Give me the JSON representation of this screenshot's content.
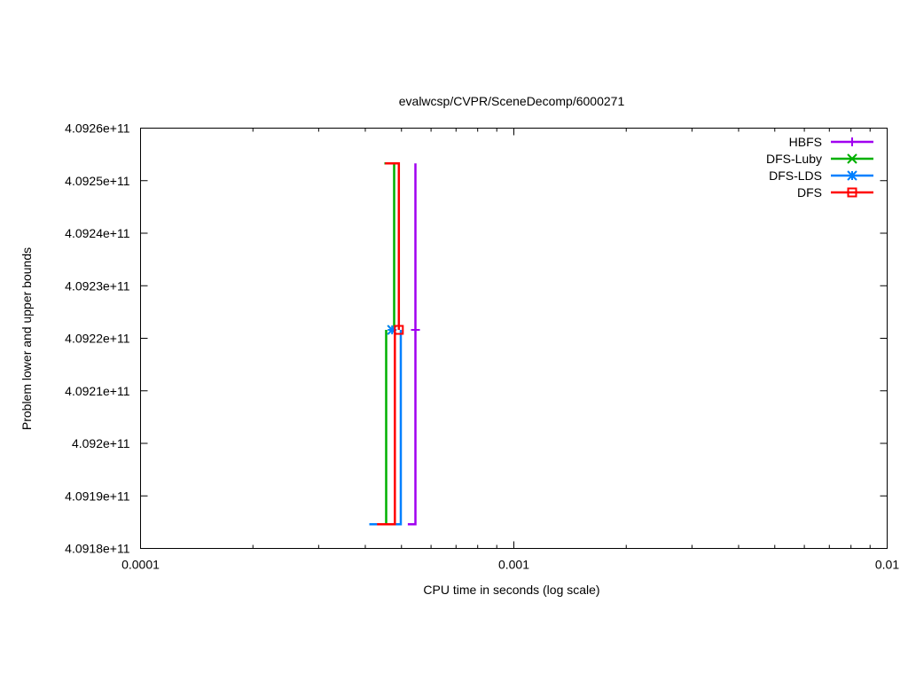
{
  "chart_data": {
    "type": "line",
    "title": "evalwcsp/CVPR/SceneDecomp/6000271",
    "xlabel": "CPU time in seconds (log scale)",
    "ylabel": "Problem lower and upper bounds",
    "x_scale": "log",
    "xlim": [
      0.0001,
      0.01
    ],
    "ylim": [
      409180000000,
      409260000000
    ],
    "x_ticks": [
      {
        "value": 0.0001,
        "label": "0.0001"
      },
      {
        "value": 0.001,
        "label": "0.001"
      },
      {
        "value": 0.01,
        "label": "0.01"
      }
    ],
    "y_ticks": [
      {
        "value": 409180000000,
        "label": "4.0918e+11"
      },
      {
        "value": 409190000000,
        "label": "4.0919e+11"
      },
      {
        "value": 409200000000,
        "label": "4.092e+11"
      },
      {
        "value": 409210000000,
        "label": "4.0921e+11"
      },
      {
        "value": 409220000000,
        "label": "4.0922e+11"
      },
      {
        "value": 409230000000,
        "label": "4.0923e+11"
      },
      {
        "value": 409240000000,
        "label": "4.0924e+11"
      },
      {
        "value": 409250000000,
        "label": "4.0925e+11"
      },
      {
        "value": 409260000000,
        "label": "4.0926e+11"
      }
    ],
    "grid": false,
    "legend_position": "top-right",
    "series": [
      {
        "name": "HBFS",
        "color": "#a000f0",
        "marker": "plus",
        "lower": [
          [
            0.00052,
            409184600000
          ],
          [
            0.000545,
            409184600000
          ],
          [
            0.000545,
            409221600000
          ]
        ],
        "upper": [
          [
            0.000545,
            409253300000
          ],
          [
            0.000545,
            409221600000
          ]
        ],
        "point": [
          0.000545,
          409221600000
        ]
      },
      {
        "name": "DFS-Luby",
        "color": "#00b000",
        "marker": "x",
        "lower": [
          [
            0.00041,
            409184600000
          ],
          [
            0.000455,
            409184600000
          ],
          [
            0.000455,
            409221600000
          ]
        ],
        "upper": [
          [
            0.00045,
            409253300000
          ],
          [
            0.000478,
            409253300000
          ],
          [
            0.000478,
            409221600000
          ]
        ],
        "point": [
          0.000472,
          409221600000
        ]
      },
      {
        "name": "DFS-LDS",
        "color": "#0080ff",
        "marker": "star",
        "lower": [
          [
            0.00041,
            409184600000
          ],
          [
            0.000498,
            409184600000
          ],
          [
            0.000498,
            409221600000
          ]
        ],
        "upper": [
          [
            0.000472,
            409221600000
          ]
        ],
        "point": [
          0.000472,
          409221600000
        ]
      },
      {
        "name": "DFS",
        "color": "#ff0000",
        "marker": "square",
        "lower": [
          [
            0.00043,
            409184600000
          ],
          [
            0.00048,
            409184600000
          ],
          [
            0.00048,
            409221600000
          ]
        ],
        "upper": [
          [
            0.000452,
            409253300000
          ],
          [
            0.000492,
            409253300000
          ],
          [
            0.000492,
            409221600000
          ]
        ],
        "point": [
          0.000492,
          409221600000
        ]
      }
    ]
  }
}
